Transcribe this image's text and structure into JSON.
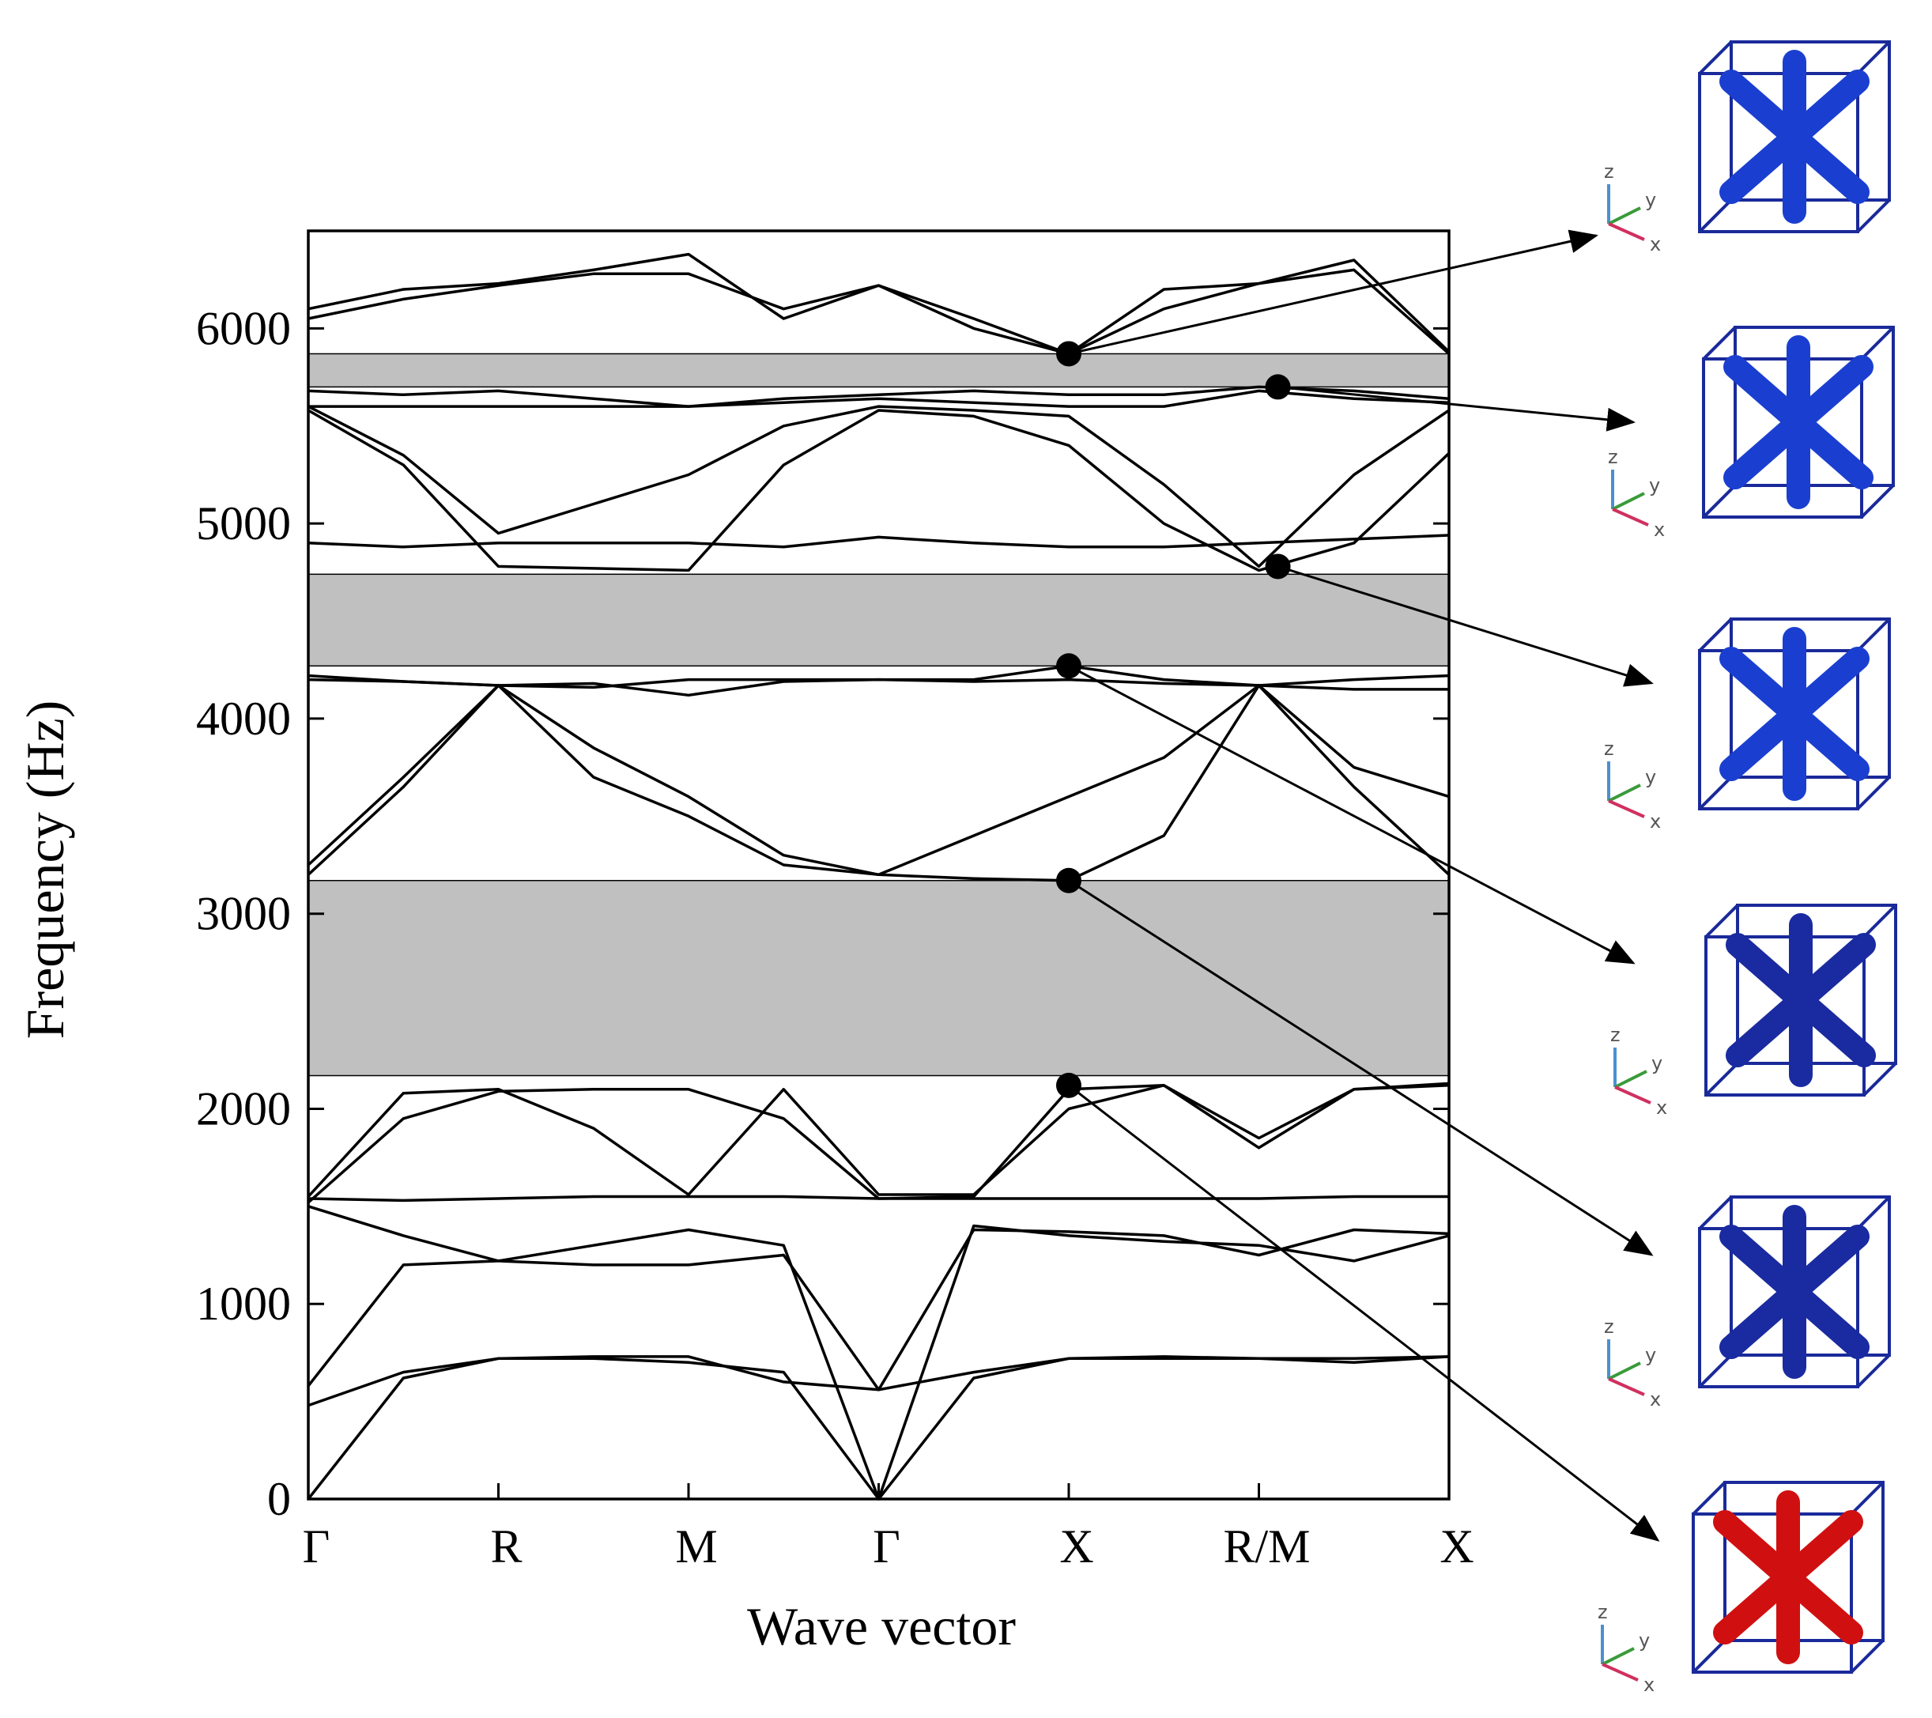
{
  "chart_data": {
    "type": "line",
    "x_label": "Wave vector",
    "y_label": "Frequency (Hz)",
    "x": [
      0,
      0.5,
      1,
      1.5,
      2,
      2.5,
      3,
      3.5,
      4,
      4.5,
      5,
      5.5,
      6
    ],
    "xlim": [
      0,
      6
    ],
    "xticks": [
      {
        "value": 0,
        "label": "Γ"
      },
      {
        "value": 1,
        "label": "R"
      },
      {
        "value": 2,
        "label": "M"
      },
      {
        "value": 3,
        "label": "Γ"
      },
      {
        "value": 4,
        "label": "X"
      },
      {
        "value": 5,
        "label": "R/M"
      },
      {
        "value": 6,
        "label": "X"
      }
    ],
    "ylim": [
      0,
      6500
    ],
    "yticks": [
      0,
      1000,
      2000,
      3000,
      4000,
      5000,
      6000
    ],
    "color": "#000000",
    "series": [
      {
        "values": [
          0,
          620,
          720,
          720,
          700,
          650,
          0,
          620,
          720,
          720,
          720,
          700,
          730
        ]
      },
      {
        "values": [
          480,
          650,
          720,
          730,
          730,
          600,
          560,
          650,
          720,
          730,
          720,
          720,
          730
        ]
      },
      {
        "values": [
          580,
          1200,
          1220,
          1300,
          1380,
          1300,
          0,
          1400,
          1350,
          1320,
          1300,
          1220,
          1350
        ]
      },
      {
        "values": [
          1500,
          1350,
          1220,
          1200,
          1200,
          1250,
          560,
          1380,
          1370,
          1350,
          1250,
          1380,
          1360
        ]
      },
      {
        "values": [
          1540,
          1530,
          1540,
          1550,
          1550,
          1550,
          1540,
          1540,
          1540,
          1540,
          1540,
          1550,
          1550
        ]
      },
      {
        "values": [
          1550,
          2080,
          2100,
          1900,
          1560,
          2100,
          1560,
          1560,
          2000,
          2120,
          1800,
          2100,
          2130
        ]
      },
      {
        "values": [
          1520,
          1950,
          2090,
          2100,
          2100,
          1950,
          1540,
          1550,
          2100,
          2120,
          1850,
          2100,
          2120
        ]
      },
      {
        "values": [
          3250,
          3700,
          4170,
          3700,
          3500,
          3250,
          3200,
          3400,
          3600,
          3800,
          4170,
          3750,
          3600
        ]
      },
      {
        "values": [
          3200,
          3650,
          4170,
          3850,
          3600,
          3300,
          3200,
          3180,
          3170,
          3400,
          4170,
          3650,
          3200
        ]
      },
      {
        "values": [
          4220,
          4190,
          4170,
          4180,
          4120,
          4190,
          4200,
          4190,
          4200,
          4180,
          4170,
          4150,
          4150
        ]
      },
      {
        "values": [
          4200,
          4190,
          4170,
          4160,
          4200,
          4200,
          4200,
          4200,
          4270,
          4200,
          4170,
          4200,
          4220
        ]
      },
      {
        "values": [
          4900,
          4880,
          4900,
          4900,
          4900,
          4880,
          4930,
          4900,
          4880,
          4880,
          4900,
          4920,
          4940
        ]
      },
      {
        "values": [
          5580,
          5300,
          4780,
          4770,
          4760,
          5300,
          5580,
          5550,
          5400,
          5000,
          4760,
          4900,
          5360
        ]
      },
      {
        "values": [
          5600,
          5350,
          4950,
          5100,
          5250,
          5500,
          5600,
          5580,
          5550,
          5200,
          4780,
          5250,
          5580
        ]
      },
      {
        "values": [
          5600,
          5600,
          5600,
          5600,
          5600,
          5620,
          5640,
          5620,
          5600,
          5600,
          5680,
          5640,
          5620
        ]
      },
      {
        "values": [
          5680,
          5660,
          5680,
          5640,
          5600,
          5640,
          5660,
          5680,
          5660,
          5660,
          5700,
          5680,
          5640
        ]
      },
      {
        "values": [
          6050,
          6150,
          6220,
          6280,
          6280,
          6100,
          6220,
          6050,
          5870,
          6100,
          6230,
          6300,
          5870
        ]
      },
      {
        "values": [
          6100,
          6200,
          6230,
          6300,
          6380,
          6050,
          6220,
          6000,
          5870,
          6200,
          6230,
          6350,
          5880
        ]
      }
    ],
    "band_gaps": [
      [
        2170,
        3170
      ],
      [
        4270,
        4740
      ],
      [
        5700,
        5870
      ]
    ],
    "gap_color": "#c0c0c0",
    "markers": {
      "x": [
        4,
        5.1,
        5.1,
        4,
        4,
        4
      ],
      "values": [
        5870,
        5700,
        4780,
        4270,
        3170,
        2120
      ]
    },
    "axis_labels": [
      "z",
      "y",
      "x"
    ]
  }
}
